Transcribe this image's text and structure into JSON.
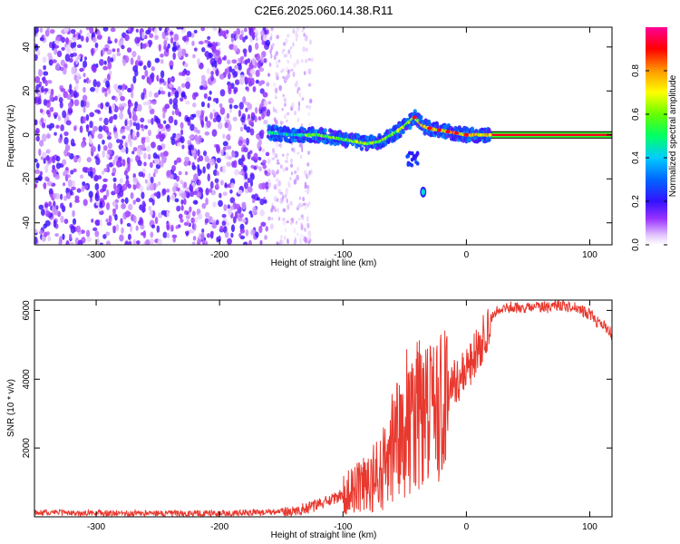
{
  "title": "C2E6.2025.060.14.38.R11",
  "chart_data": [
    {
      "type": "heatmap",
      "xlabel": "Height of straight line (km)",
      "ylabel": "Frequency (Hz)",
      "xlim": [
        -350,
        118
      ],
      "ylim": [
        -50,
        49
      ],
      "xticks": [
        -300,
        -200,
        -100,
        0,
        100
      ],
      "yticks": [
        -40,
        -20,
        0,
        20,
        40
      ],
      "colorbar": {
        "label": "Normalized spectral amplitude",
        "range": [
          0,
          1
        ],
        "ticks": [
          0.0,
          0.2,
          0.4,
          0.6,
          0.8
        ],
        "colormap": "rainbow (violet → blue → cyan → green → yellow → red → magenta)"
      },
      "features": {
        "noise_region_x": [
          -350,
          -160
        ],
        "sparse_noise_x": [
          -160,
          -125
        ],
        "signal_track": {
          "x": [
            -160,
            -140,
            -120,
            -100,
            -90,
            -80,
            -70,
            -60,
            -50,
            -42,
            -35,
            -30,
            -20,
            -10,
            0,
            20,
            60,
            118
          ],
          "y": [
            1,
            0,
            0,
            -2,
            -3,
            -4,
            -3,
            0,
            4,
            8,
            4,
            3,
            2,
            1,
            0,
            0,
            0,
            0
          ]
        },
        "isolated_spot": {
          "x": -35,
          "y": -26
        },
        "steady_line_x": [
          0,
          118
        ]
      }
    },
    {
      "type": "line",
      "xlabel": "Height of straight line (km)",
      "ylabel": "SNR (10 * v/v)",
      "xlim": [
        -350,
        118
      ],
      "ylim": [
        0,
        6300
      ],
      "xticks": [
        -300,
        -200,
        -100,
        0,
        100
      ],
      "yticks": [
        2000,
        4000,
        6000
      ],
      "color": "#e8392f",
      "series": [
        {
          "x": [
            -350,
            -300,
            -250,
            -200,
            -150,
            -140,
            -130,
            -120,
            -110,
            -100,
            -90,
            -80,
            -70,
            -60,
            -55,
            -50,
            -45,
            -40,
            -35,
            -30,
            -25,
            -20,
            -15,
            -10,
            -5,
            0,
            5,
            10,
            15,
            20,
            25,
            30,
            40,
            50,
            60,
            70,
            80,
            90,
            100,
            105,
            110,
            115,
            118
          ],
          "y": [
            120,
            110,
            100,
            100,
            150,
            200,
            250,
            350,
            500,
            650,
            800,
            1000,
            1300,
            1900,
            2200,
            2600,
            2900,
            3000,
            2900,
            2800,
            2900,
            3300,
            3700,
            3900,
            4100,
            4300,
            4600,
            4900,
            5300,
            5800,
            6000,
            6050,
            6100,
            6050,
            6100,
            6100,
            6150,
            6050,
            5900,
            5700,
            5600,
            5400,
            5300
          ]
        }
      ]
    }
  ]
}
